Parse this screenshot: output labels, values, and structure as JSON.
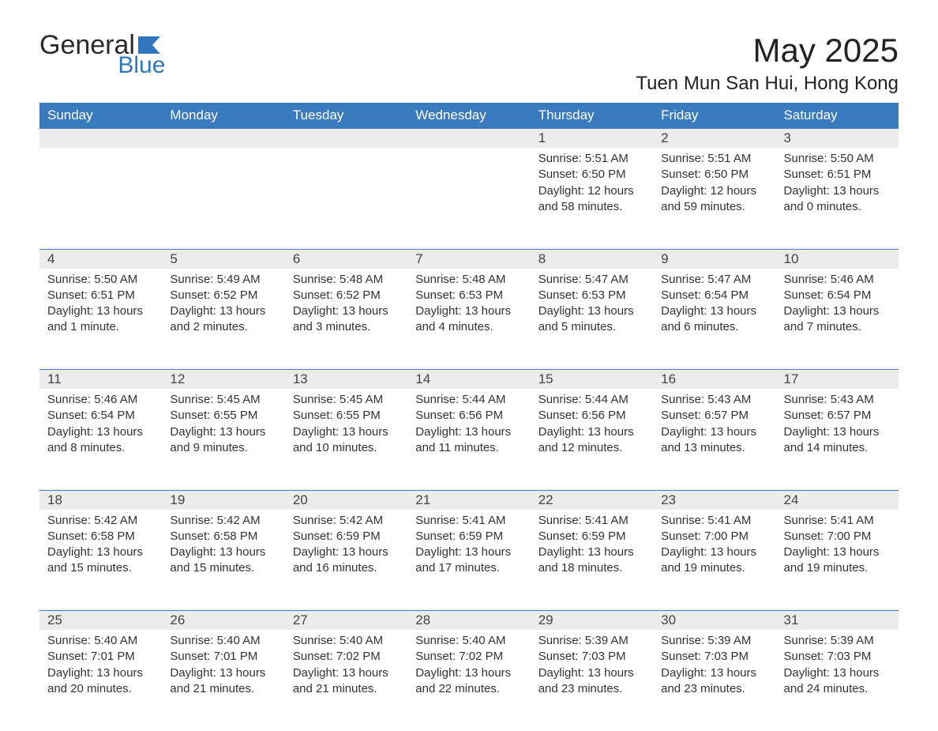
{
  "logo": {
    "general": "General",
    "blue": "Blue",
    "flag_color": "#2f78c1"
  },
  "title": "May 2025",
  "location": "Tuen Mun San Hui, Hong Kong",
  "header_bg": "#3a7bbf",
  "header_fg": "#ffffff",
  "daynum_bg": "#ececec",
  "text_color": "#333333",
  "day_labels": [
    "Sunday",
    "Monday",
    "Tuesday",
    "Wednesday",
    "Thursday",
    "Friday",
    "Saturday"
  ],
  "weeks": [
    [
      null,
      null,
      null,
      null,
      {
        "n": "1",
        "sunrise": "5:51 AM",
        "sunset": "6:50 PM",
        "daylight": "12 hours and 58 minutes."
      },
      {
        "n": "2",
        "sunrise": "5:51 AM",
        "sunset": "6:50 PM",
        "daylight": "12 hours and 59 minutes."
      },
      {
        "n": "3",
        "sunrise": "5:50 AM",
        "sunset": "6:51 PM",
        "daylight": "13 hours and 0 minutes."
      }
    ],
    [
      {
        "n": "4",
        "sunrise": "5:50 AM",
        "sunset": "6:51 PM",
        "daylight": "13 hours and 1 minute."
      },
      {
        "n": "5",
        "sunrise": "5:49 AM",
        "sunset": "6:52 PM",
        "daylight": "13 hours and 2 minutes."
      },
      {
        "n": "6",
        "sunrise": "5:48 AM",
        "sunset": "6:52 PM",
        "daylight": "13 hours and 3 minutes."
      },
      {
        "n": "7",
        "sunrise": "5:48 AM",
        "sunset": "6:53 PM",
        "daylight": "13 hours and 4 minutes."
      },
      {
        "n": "8",
        "sunrise": "5:47 AM",
        "sunset": "6:53 PM",
        "daylight": "13 hours and 5 minutes."
      },
      {
        "n": "9",
        "sunrise": "5:47 AM",
        "sunset": "6:54 PM",
        "daylight": "13 hours and 6 minutes."
      },
      {
        "n": "10",
        "sunrise": "5:46 AM",
        "sunset": "6:54 PM",
        "daylight": "13 hours and 7 minutes."
      }
    ],
    [
      {
        "n": "11",
        "sunrise": "5:46 AM",
        "sunset": "6:54 PM",
        "daylight": "13 hours and 8 minutes."
      },
      {
        "n": "12",
        "sunrise": "5:45 AM",
        "sunset": "6:55 PM",
        "daylight": "13 hours and 9 minutes."
      },
      {
        "n": "13",
        "sunrise": "5:45 AM",
        "sunset": "6:55 PM",
        "daylight": "13 hours and 10 minutes."
      },
      {
        "n": "14",
        "sunrise": "5:44 AM",
        "sunset": "6:56 PM",
        "daylight": "13 hours and 11 minutes."
      },
      {
        "n": "15",
        "sunrise": "5:44 AM",
        "sunset": "6:56 PM",
        "daylight": "13 hours and 12 minutes."
      },
      {
        "n": "16",
        "sunrise": "5:43 AM",
        "sunset": "6:57 PM",
        "daylight": "13 hours and 13 minutes."
      },
      {
        "n": "17",
        "sunrise": "5:43 AM",
        "sunset": "6:57 PM",
        "daylight": "13 hours and 14 minutes."
      }
    ],
    [
      {
        "n": "18",
        "sunrise": "5:42 AM",
        "sunset": "6:58 PM",
        "daylight": "13 hours and 15 minutes."
      },
      {
        "n": "19",
        "sunrise": "5:42 AM",
        "sunset": "6:58 PM",
        "daylight": "13 hours and 15 minutes."
      },
      {
        "n": "20",
        "sunrise": "5:42 AM",
        "sunset": "6:59 PM",
        "daylight": "13 hours and 16 minutes."
      },
      {
        "n": "21",
        "sunrise": "5:41 AM",
        "sunset": "6:59 PM",
        "daylight": "13 hours and 17 minutes."
      },
      {
        "n": "22",
        "sunrise": "5:41 AM",
        "sunset": "6:59 PM",
        "daylight": "13 hours and 18 minutes."
      },
      {
        "n": "23",
        "sunrise": "5:41 AM",
        "sunset": "7:00 PM",
        "daylight": "13 hours and 19 minutes."
      },
      {
        "n": "24",
        "sunrise": "5:41 AM",
        "sunset": "7:00 PM",
        "daylight": "13 hours and 19 minutes."
      }
    ],
    [
      {
        "n": "25",
        "sunrise": "5:40 AM",
        "sunset": "7:01 PM",
        "daylight": "13 hours and 20 minutes."
      },
      {
        "n": "26",
        "sunrise": "5:40 AM",
        "sunset": "7:01 PM",
        "daylight": "13 hours and 21 minutes."
      },
      {
        "n": "27",
        "sunrise": "5:40 AM",
        "sunset": "7:02 PM",
        "daylight": "13 hours and 21 minutes."
      },
      {
        "n": "28",
        "sunrise": "5:40 AM",
        "sunset": "7:02 PM",
        "daylight": "13 hours and 22 minutes."
      },
      {
        "n": "29",
        "sunrise": "5:39 AM",
        "sunset": "7:03 PM",
        "daylight": "13 hours and 23 minutes."
      },
      {
        "n": "30",
        "sunrise": "5:39 AM",
        "sunset": "7:03 PM",
        "daylight": "13 hours and 23 minutes."
      },
      {
        "n": "31",
        "sunrise": "5:39 AM",
        "sunset": "7:03 PM",
        "daylight": "13 hours and 24 minutes."
      }
    ]
  ],
  "labels": {
    "sunrise": "Sunrise: ",
    "sunset": "Sunset: ",
    "daylight": "Daylight: "
  }
}
